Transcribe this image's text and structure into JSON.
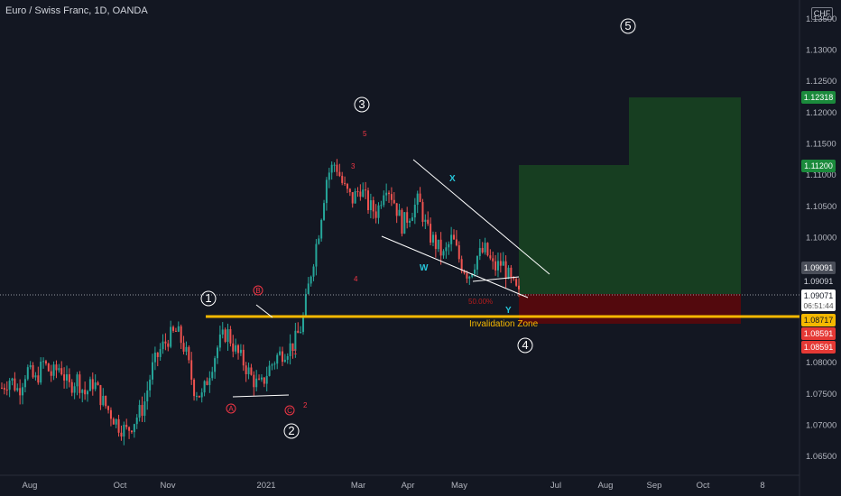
{
  "header": {
    "title": "Euro / Swiss Franc, 1D, OANDA",
    "currency": "CHF"
  },
  "colors": {
    "background": "#131722",
    "up": "#26a69a",
    "down": "#ef5350",
    "invalidation": "#f5b800",
    "target_zone": "#1b5e20",
    "stop_zone": "#7f0000",
    "label_green": "#1b8a3c",
    "label_red": "#e53935"
  },
  "chart_data": {
    "type": "candlestick",
    "symbol": "Euro / Swiss Franc",
    "interval": "1D",
    "source": "OANDA",
    "x_axis_ticks": [
      "Aug",
      "Oct",
      "Nov",
      "2021",
      "Mar",
      "Apr",
      "May",
      "Jul",
      "Aug",
      "Sep",
      "Oct",
      "8"
    ],
    "y_axis_ticks": [
      "1.13500",
      "1.13000",
      "1.12500",
      "1.12000",
      "1.11500",
      "1.11000",
      "1.10500",
      "1.10000",
      "1.08000",
      "1.07500",
      "1.07000",
      "1.06500"
    ],
    "ylim": [
      1.062,
      1.138
    ],
    "price_labels": [
      {
        "value": "1.12318",
        "style": "green"
      },
      {
        "value": "1.11200",
        "style": "green"
      },
      {
        "value": "1.09091",
        "style": "gray"
      },
      {
        "value": "1.09091",
        "style": "dark"
      },
      {
        "value": "1.09071",
        "style": "current",
        "countdown": "06:51:44"
      },
      {
        "value": "1.08717",
        "style": "yellow"
      },
      {
        "value": "1.08591",
        "style": "red"
      },
      {
        "value": "1.08591",
        "style": "red"
      }
    ],
    "invalidation_level": 1.08717,
    "invalidation_label": "Invalidation Zone",
    "fib_label": "50.00%",
    "wave_labels_major": [
      "1",
      "2",
      "3",
      "4",
      "5"
    ],
    "wave_labels_abc": [
      "B",
      "A",
      "C"
    ],
    "wave_labels_minor": [
      "1",
      "2",
      "3",
      "4",
      "5"
    ],
    "wave_labels_wxy": [
      "X",
      "W",
      "Y"
    ],
    "candles_close_path": [
      1.076,
      1.0775,
      1.0755,
      1.079,
      1.077,
      1.08,
      1.078,
      1.0795,
      1.076,
      1.0775,
      1.075,
      1.077,
      1.074,
      1.072,
      1.07,
      1.069,
      1.071,
      1.073,
      1.079,
      1.082,
      1.084,
      1.085,
      1.082,
      1.076,
      1.0745,
      1.079,
      1.083,
      1.085,
      1.082,
      1.08,
      1.0775,
      1.076,
      1.079,
      1.081,
      1.082,
      1.083,
      1.086,
      1.094,
      1.101,
      1.11,
      1.112,
      1.108,
      1.106,
      1.108,
      1.105,
      1.104,
      1.109,
      1.106,
      1.102,
      1.104,
      1.106,
      1.101,
      1.099,
      1.097,
      1.1,
      1.096,
      1.094,
      1.097,
      1.098,
      1.095,
      1.096,
      1.093,
      1.0907
    ]
  }
}
